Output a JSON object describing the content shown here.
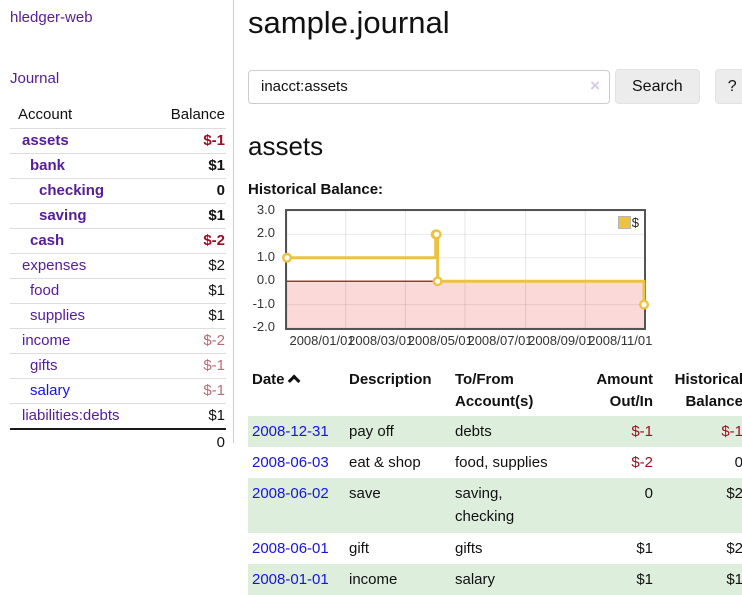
{
  "colors": {
    "link_purple": "#551c9e",
    "link_blue": "#1414e8",
    "negative": "#9e0d20",
    "negative_muted": "#bd6b73",
    "row_highlight_green": "#ddeedd",
    "chart_line_yellow": "#edc240",
    "chart_negative_region_pink": "#fbd9d9",
    "chart_zero_line_red": "#8b0000"
  },
  "app": {
    "brand": "hledger-web",
    "nav_journal": "Journal"
  },
  "sidebar": {
    "table": {
      "account_header": "Account",
      "balance_header": "Balance",
      "accounts": [
        {
          "name": "assets",
          "balance": "$-1",
          "level": 1,
          "bold": true,
          "balance_class": "neg"
        },
        {
          "name": "bank",
          "balance": "$1",
          "level": 2,
          "bold": true,
          "balance_class": "pos"
        },
        {
          "name": "checking",
          "balance": "0",
          "level": 3,
          "bold": true,
          "balance_class": "pos"
        },
        {
          "name": "saving",
          "balance": "$1",
          "level": 3,
          "bold": true,
          "balance_class": "pos"
        },
        {
          "name": "cash",
          "balance": "$-2",
          "level": 2,
          "bold": true,
          "balance_class": "neg"
        },
        {
          "name": "expenses",
          "balance": "$2",
          "level": 1,
          "bold": false,
          "balance_class": "pos"
        },
        {
          "name": "food",
          "balance": "$1",
          "level": 2,
          "bold": false,
          "balance_class": "pos"
        },
        {
          "name": "supplies",
          "balance": "$1",
          "level": 2,
          "bold": false,
          "balance_class": "pos"
        },
        {
          "name": "income",
          "balance": "$-2",
          "level": 1,
          "bold": false,
          "balance_class": "neg-soft"
        },
        {
          "name": "gifts",
          "balance": "$-1",
          "level": 2,
          "bold": false,
          "balance_class": "neg-soft"
        },
        {
          "name": "salary",
          "balance": "$-1",
          "level": 2,
          "bold": false,
          "balance_class": "neg-soft",
          "link_blue": true
        },
        {
          "name": "liabilities:debts",
          "balance": "$1",
          "level": 1,
          "bold": false,
          "balance_class": "pos"
        }
      ],
      "total": "0"
    }
  },
  "header": {
    "title": "sample.journal"
  },
  "search": {
    "value": "inacct:assets",
    "clear_icon": "×",
    "button_label": "Search",
    "help_label": "?"
  },
  "account_page": {
    "heading": "assets",
    "chart_title": "Historical Balance:"
  },
  "chart_data": {
    "type": "line",
    "step": true,
    "title": "Historical Balance:",
    "legend": {
      "label": "$",
      "position": "top-right"
    },
    "series": [
      {
        "name": "$",
        "points": [
          [
            "2008-01-01",
            1
          ],
          [
            "2008-06-01",
            2
          ],
          [
            "2008-06-02",
            2
          ],
          [
            "2008-06-03",
            0
          ],
          [
            "2008-12-31",
            -1
          ]
        ]
      }
    ],
    "x_range": [
      "2008-01-01",
      "2008-12-31"
    ],
    "ylim": [
      -2,
      3
    ],
    "y_ticks": [
      "3.0",
      "2.0",
      "1.0",
      "0.0",
      "-1.0",
      "-2.0"
    ],
    "x_ticks": [
      "2008/01/01",
      "2008/03/01",
      "2008/05/01",
      "2008/07/01",
      "2008/09/01",
      "2008/11/01"
    ],
    "grid": true,
    "negative_region_shaded": true
  },
  "register": {
    "columns": [
      {
        "label": "Date",
        "align": "left",
        "w": "w-date",
        "sort": "asc"
      },
      {
        "label": "Description",
        "align": "left",
        "w": "w-desc"
      },
      {
        "label": "To/From Account(s)",
        "align": "left",
        "w": "w-accts"
      },
      {
        "label": "Amount Out/In",
        "align": "right",
        "w": "w-amt"
      },
      {
        "label": "Historical Balance",
        "align": "right",
        "w": "w-bal"
      }
    ],
    "rows": [
      {
        "date": "2008-12-31",
        "description": "pay off",
        "accounts": "debts",
        "amount": "$-1",
        "amount_class": "neg",
        "balance": "$-1",
        "balance_class": "neg",
        "highlight": true
      },
      {
        "date": "2008-06-03",
        "description": "eat & shop",
        "accounts": "food, supplies",
        "amount": "$-2",
        "amount_class": "neg",
        "balance": "0",
        "balance_class": "pos",
        "highlight": false
      },
      {
        "date": "2008-06-02",
        "description": "save",
        "accounts": "saving, checking",
        "amount": "0",
        "amount_class": "pos",
        "balance": "$2",
        "balance_class": "pos",
        "highlight": true
      },
      {
        "date": "2008-06-01",
        "description": "gift",
        "accounts": "gifts",
        "amount": "$1",
        "amount_class": "pos",
        "balance": "$2",
        "balance_class": "pos",
        "highlight": false
      },
      {
        "date": "2008-01-01",
        "description": "income",
        "accounts": "salary",
        "amount": "$1",
        "amount_class": "pos",
        "balance": "$1",
        "balance_class": "pos",
        "highlight": true
      }
    ]
  }
}
